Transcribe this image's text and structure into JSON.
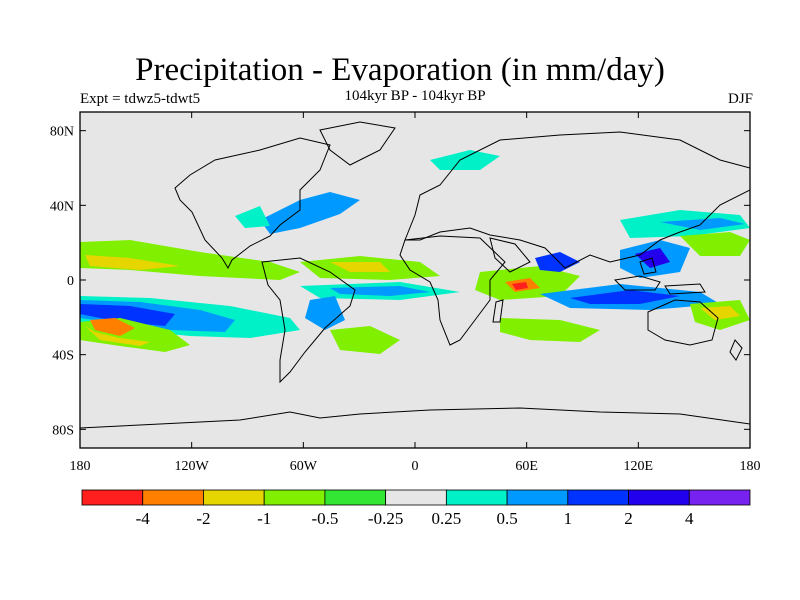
{
  "title": "Precipitation - Evaporation (in mm/day)",
  "experiment": "Expt = tdwz5-tdwt5",
  "subtitle": "104kyr BP - 104kyr BP",
  "season": "DJF",
  "colors": {
    "background_field": "#e6e6e6",
    "coastline": "#000000"
  },
  "map_data": {
    "type": "filled-contour-map",
    "projection": "equirectangular",
    "lon_range": [
      -180,
      180
    ],
    "lat_range": [
      -90,
      90
    ],
    "x_ticks": [
      {
        "value": -180,
        "label": "180"
      },
      {
        "value": -120,
        "label": "120W"
      },
      {
        "value": -60,
        "label": "60W"
      },
      {
        "value": 0,
        "label": "0"
      },
      {
        "value": 60,
        "label": "60E"
      },
      {
        "value": 120,
        "label": "120E"
      },
      {
        "value": 180,
        "label": "180"
      }
    ],
    "y_ticks": [
      {
        "value": 80,
        "label": "80N"
      },
      {
        "value": 40,
        "label": "40N"
      },
      {
        "value": 0,
        "label": "0"
      },
      {
        "value": -40,
        "label": "40S"
      },
      {
        "value": -80,
        "label": "80S"
      }
    ],
    "colorbar": {
      "levels": [
        "-4",
        "-2",
        "-1",
        "-0.5",
        "-0.25",
        "0.25",
        "0.5",
        "1",
        "2",
        "4"
      ],
      "colors": [
        "#ff1f1f",
        "#ff7f00",
        "#e6d600",
        "#80f000",
        "#33e633",
        "#e6e6e6",
        "#00f0c8",
        "#0099ff",
        "#0033ff",
        "#2200ee",
        "#7722ee"
      ]
    }
  }
}
